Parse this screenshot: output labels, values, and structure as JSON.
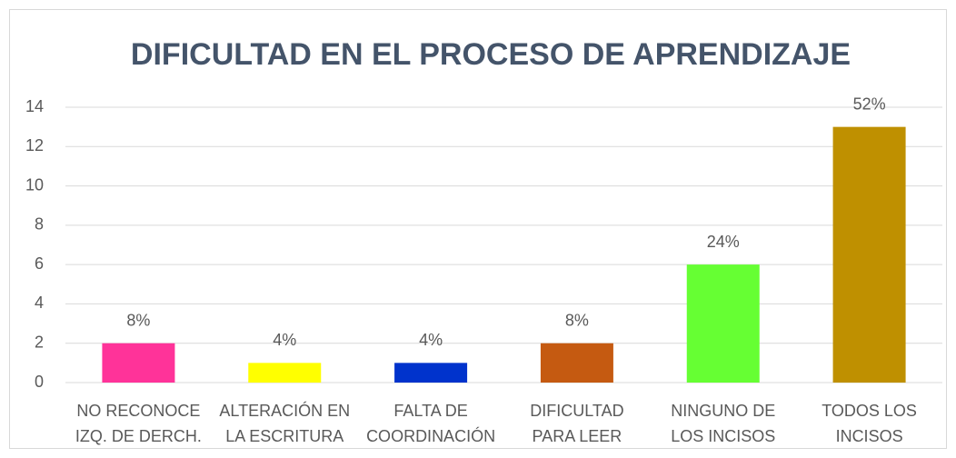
{
  "chart_data": {
    "type": "bar",
    "title": "DIFICULTAD EN EL PROCESO DE APRENDIZAJE",
    "categories": [
      [
        "NO RECONOCE",
        "IZQ. DE DERCH."
      ],
      [
        "ALTERACIÓN EN",
        "LA ESCRITURA"
      ],
      [
        "FALTA DE",
        "COORDINACIÓN"
      ],
      [
        "DIFICULTAD",
        "PARA LEER"
      ],
      [
        "NINGUNO DE",
        "LOS INCISOS"
      ],
      [
        "TODOS LOS",
        "INCISOS"
      ]
    ],
    "values": [
      2,
      1,
      1,
      2,
      6,
      13
    ],
    "data_labels": [
      "8%",
      "4%",
      "4%",
      "8%",
      "24%",
      "52%"
    ],
    "colors": [
      "#ff3399",
      "#ffff00",
      "#0033cc",
      "#c55a11",
      "#66ff33",
      "#bf9000"
    ],
    "ylim": [
      0,
      14
    ],
    "yticks": [
      0,
      2,
      4,
      6,
      8,
      10,
      12,
      14
    ],
    "grid": true
  }
}
